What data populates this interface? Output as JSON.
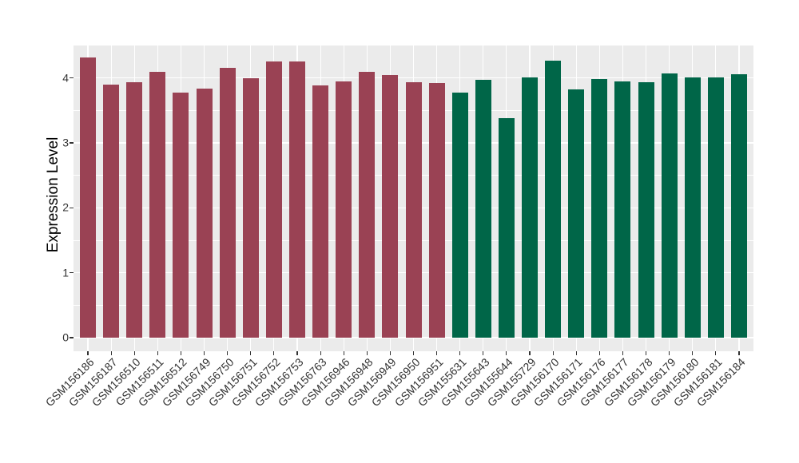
{
  "chart_data": {
    "type": "bar",
    "ylabel": "Expression Level",
    "xlabel": "",
    "yticks": [
      "0",
      "1",
      "2",
      "3",
      "4"
    ],
    "ylim": [
      0,
      4.5
    ],
    "minor_gridlines": [
      0.5,
      1.5,
      2.5,
      3.5
    ],
    "grid": "white major/minor horizontal gridlines and vertical gridline per category on grey panel",
    "legend_position": "none",
    "x_tick_rotation_deg": 45,
    "panel_background": "#ebebeb",
    "gridline_color": "#ffffff",
    "group_colors": {
      "left": "#9a4254",
      "right": "#006648"
    },
    "categories": [
      "GSM156186",
      "GSM156187",
      "GSM156510",
      "GSM156511",
      "GSM156512",
      "GSM156749",
      "GSM156750",
      "GSM156751",
      "GSM156752",
      "GSM156753",
      "GSM156763",
      "GSM156946",
      "GSM156948",
      "GSM156949",
      "GSM156950",
      "GSM156951",
      "GSM155631",
      "GSM155643",
      "GSM155644",
      "GSM155729",
      "GSM156170",
      "GSM156171",
      "GSM156176",
      "GSM156177",
      "GSM156178",
      "GSM156179",
      "GSM156180",
      "GSM156181",
      "GSM156184"
    ],
    "values": [
      4.31,
      3.9,
      3.94,
      4.1,
      3.77,
      3.83,
      4.15,
      4.0,
      4.25,
      4.26,
      3.88,
      3.95,
      4.09,
      4.04,
      3.94,
      3.92,
      3.77,
      3.97,
      3.38,
      4.01,
      4.27,
      3.82,
      3.98,
      3.95,
      3.93,
      4.07,
      4.01,
      4.01,
      4.06
    ],
    "bar_groups": [
      "left",
      "left",
      "left",
      "left",
      "left",
      "left",
      "left",
      "left",
      "left",
      "left",
      "left",
      "left",
      "left",
      "left",
      "left",
      "left",
      "right",
      "right",
      "right",
      "right",
      "right",
      "right",
      "right",
      "right",
      "right",
      "right",
      "right",
      "right",
      "right"
    ]
  }
}
